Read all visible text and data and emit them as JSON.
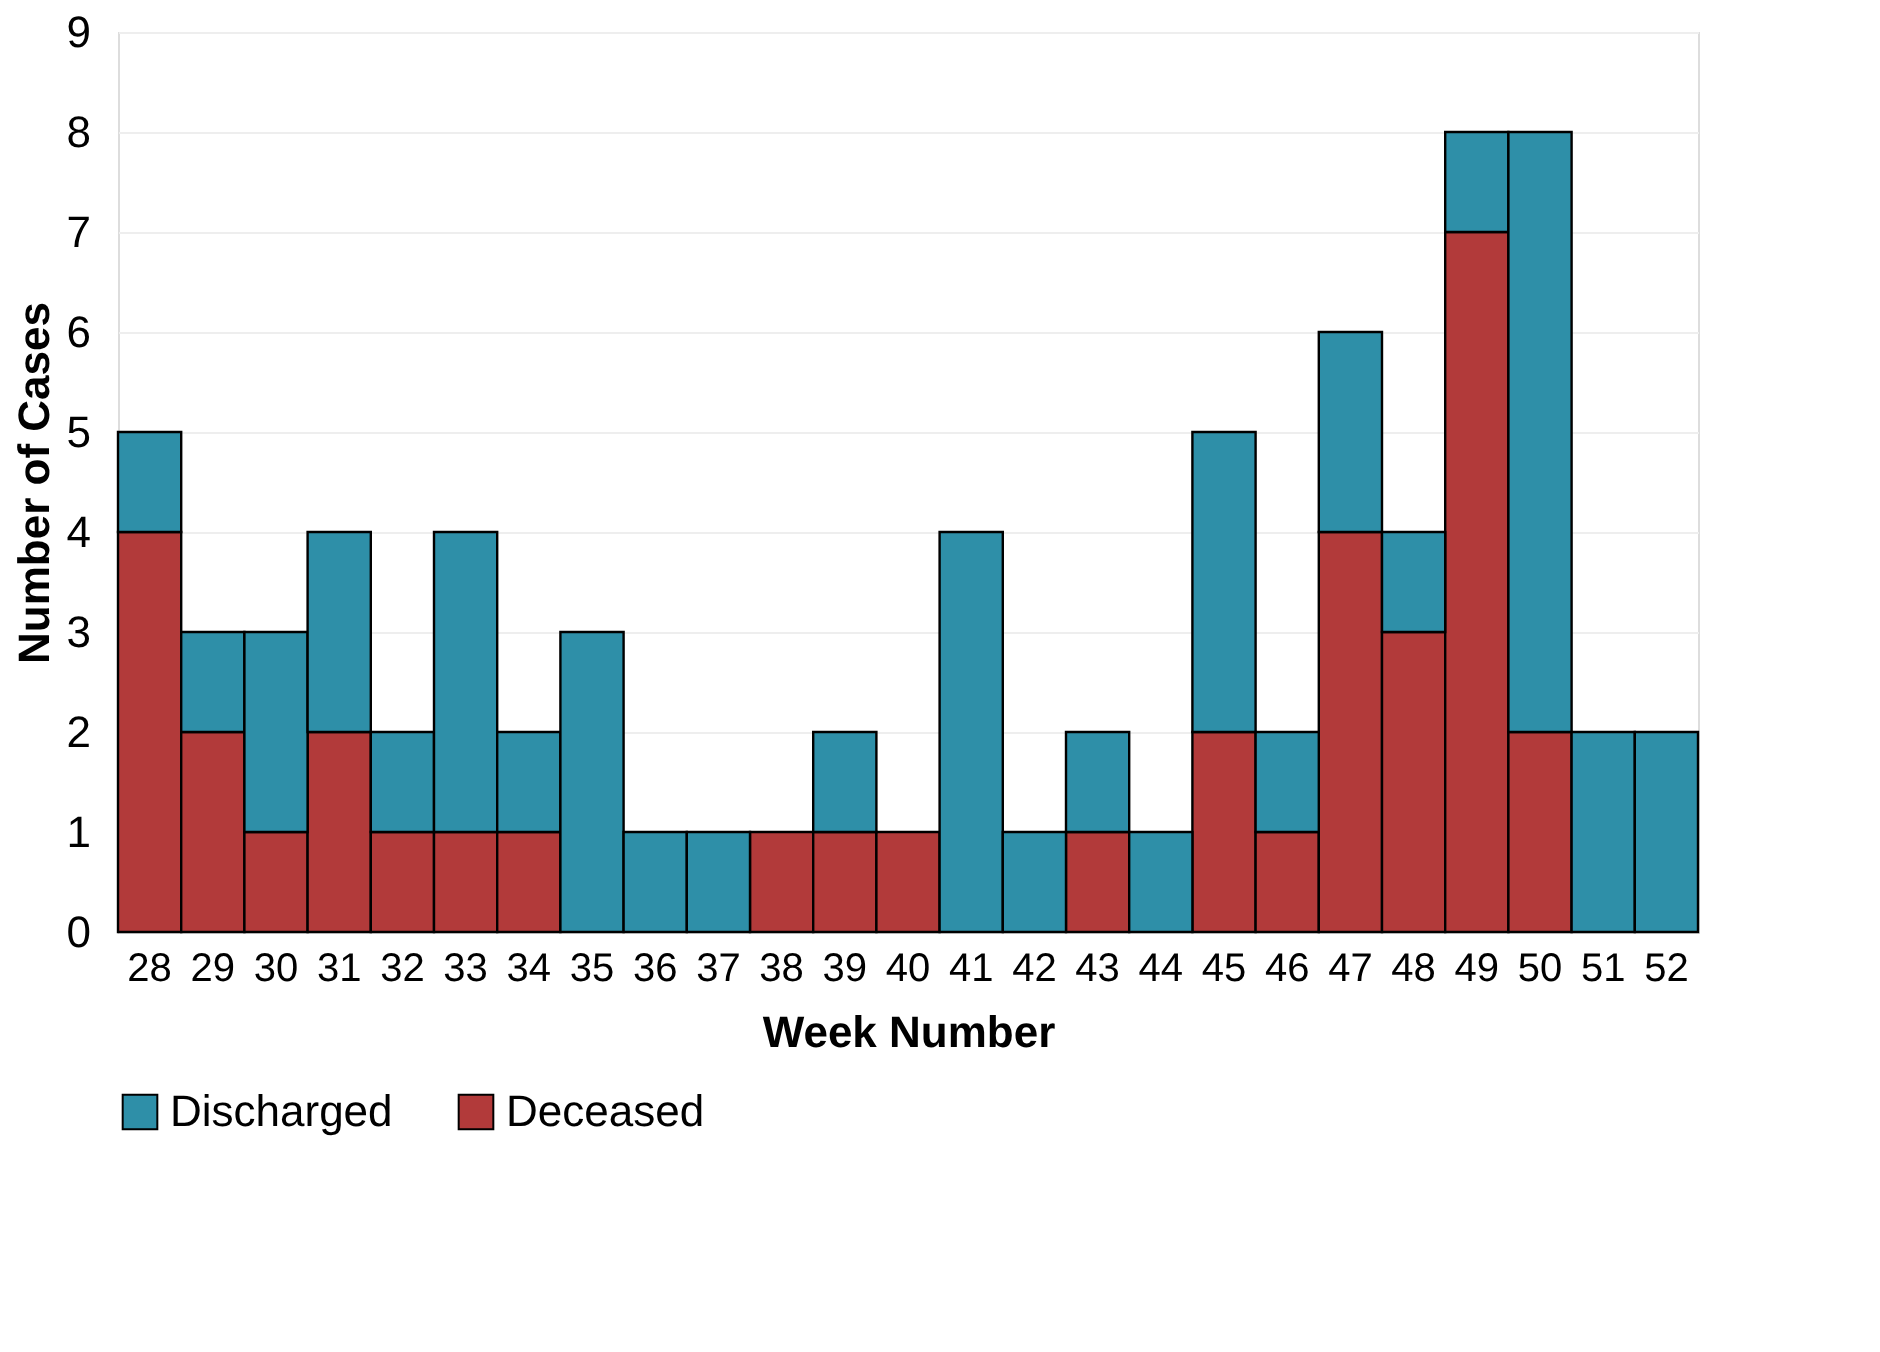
{
  "chart_data": {
    "type": "bar",
    "stacked": true,
    "xlabel": "Week Number",
    "ylabel": "Number of Cases",
    "categories": [
      "28",
      "29",
      "30",
      "31",
      "32",
      "33",
      "34",
      "35",
      "36",
      "37",
      "38",
      "39",
      "40",
      "41",
      "42",
      "43",
      "44",
      "45",
      "46",
      "47",
      "48",
      "49",
      "50",
      "51",
      "52"
    ],
    "series": [
      {
        "name": "Deceased",
        "color": "#b23a3a",
        "values": [
          4,
          2,
          1,
          2,
          1,
          1,
          1,
          0,
          0,
          0,
          1,
          1,
          1,
          0,
          0,
          1,
          0,
          2,
          1,
          4,
          3,
          7,
          2,
          0,
          0
        ]
      },
      {
        "name": "Discharged",
        "color": "#2e8fa8",
        "values": [
          1,
          1,
          2,
          2,
          1,
          3,
          1,
          3,
          1,
          1,
          0,
          1,
          0,
          4,
          1,
          1,
          1,
          3,
          1,
          2,
          1,
          1,
          6,
          2,
          2
        ]
      }
    ],
    "ylim": [
      0,
      9
    ],
    "yticks": [
      0,
      1,
      2,
      3,
      4,
      5,
      6,
      7,
      8,
      9
    ],
    "grid": "y",
    "legend": "bottom"
  }
}
